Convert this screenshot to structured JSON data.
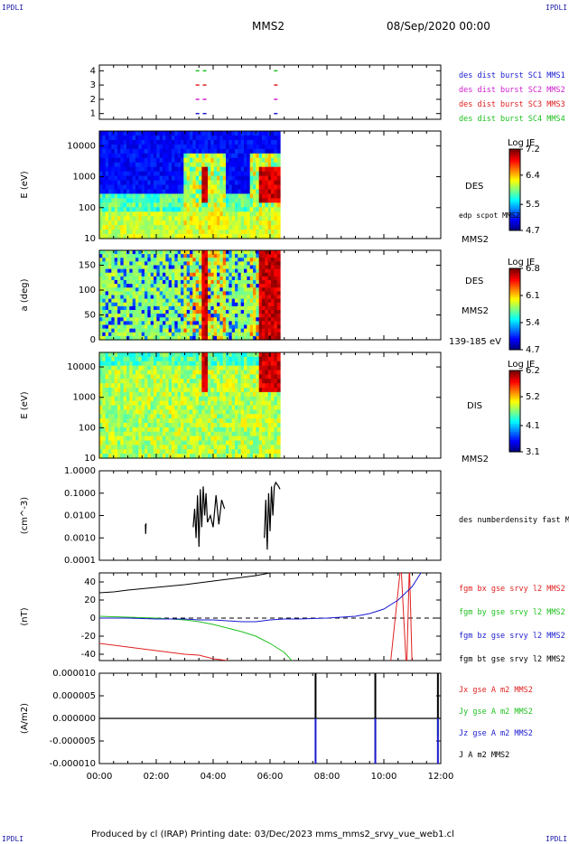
{
  "corner_label": "IPDLI",
  "header": {
    "spacecraft": "MMS2",
    "datetime": "08/Sep/2020 00:00"
  },
  "footer": {
    "text": "Produced by cl (IRAP)   Printing date: 03/Dec/2023   mms_mms2_srvy_vue_web1.cl"
  },
  "chart_data": [
    {
      "type": "scatter",
      "panel": "burst-availability",
      "yticks": [
        "1",
        "2",
        "3",
        "4"
      ],
      "ylim": [
        0.6,
        4.4
      ],
      "series": [
        {
          "name": "des dist burst SC1 MMS1",
          "color": "#1a1ad0",
          "y": 1,
          "x": [
            3.45,
            3.7,
            6.2
          ]
        },
        {
          "name": "des dist burst SC2 MMS2",
          "color": "#d020d0",
          "y": 2,
          "x": [
            3.45,
            3.7,
            6.2
          ]
        },
        {
          "name": "des dist burst SC3 MMS3",
          "color": "#e02020",
          "y": 3,
          "x": [
            3.45,
            3.7,
            6.2
          ]
        },
        {
          "name": "des dist burst SC4 MMS4",
          "color": "#20c020",
          "y": 4,
          "x": [
            3.45,
            3.7,
            6.2
          ]
        }
      ]
    },
    {
      "type": "heatmap",
      "panel": "des-energy",
      "ylabel": "E (eV)",
      "yscale": "log",
      "ylim": [
        10,
        30000
      ],
      "yticks": [
        "10",
        "100",
        "1000",
        "10000"
      ],
      "data_end_hour": 6.35,
      "right_labels": [
        "DES",
        "edp scpot MMS2",
        "MMS2"
      ],
      "colorbar": {
        "title": "Log JE",
        "ticks": [
          "4.7",
          "5.5",
          "6.4",
          "7.2"
        ],
        "range": [
          4.7,
          7.2
        ]
      }
    },
    {
      "type": "heatmap",
      "panel": "des-pitch-angle",
      "ylabel": "a (deg)",
      "ylim": [
        0,
        180
      ],
      "yticks": [
        "0",
        "50",
        "100",
        "150"
      ],
      "data_end_hour": 6.35,
      "right_labels": [
        "DES",
        "MMS2",
        "139-185 eV"
      ],
      "colorbar": {
        "title": "Log JE",
        "ticks": [
          "4.7",
          "5.4",
          "6.1",
          "6.8"
        ],
        "range": [
          4.7,
          6.8
        ]
      }
    },
    {
      "type": "heatmap",
      "panel": "dis-energy",
      "ylabel": "E (eV)",
      "yscale": "log",
      "ylim": [
        10,
        30000
      ],
      "yticks": [
        "10",
        "100",
        "1000",
        "10000"
      ],
      "data_end_hour": 6.35,
      "right_labels": [
        "DIS",
        "MMS2"
      ],
      "colorbar": {
        "title": "Log JE",
        "ticks": [
          "3.1",
          "4.1",
          "5.2",
          "6.2"
        ],
        "range": [
          3.1,
          6.2
        ]
      }
    },
    {
      "type": "line",
      "panel": "density",
      "ylabel": "(cm^-3)",
      "yscale": "log",
      "ylim": [
        0.0001,
        1.0
      ],
      "yticks": [
        "0.0001",
        "0.0010",
        "0.0100",
        "0.1000",
        "1.0000"
      ],
      "series": [
        {
          "name": "des numberdensity fast M",
          "color": "#000000",
          "points": [
            [
              1.62,
              0.004
            ],
            [
              1.63,
              0.0015
            ],
            [
              1.64,
              0.0045
            ],
            [
              3.3,
              0.003
            ],
            [
              3.35,
              0.02
            ],
            [
              3.4,
              0.001
            ],
            [
              3.45,
              0.08
            ],
            [
              3.5,
              0.0004
            ],
            [
              3.55,
              0.15
            ],
            [
              3.6,
              0.003
            ],
            [
              3.65,
              0.2
            ],
            [
              3.7,
              0.01
            ],
            [
              3.75,
              0.1
            ],
            [
              3.8,
              0.005
            ],
            [
              3.9,
              0.01
            ],
            [
              4.0,
              0.003
            ],
            [
              4.1,
              0.08
            ],
            [
              4.2,
              0.004
            ],
            [
              4.3,
              0.05
            ],
            [
              4.4,
              0.02
            ],
            [
              5.8,
              0.001
            ],
            [
              5.85,
              0.05
            ],
            [
              5.9,
              0.0003
            ],
            [
              5.95,
              0.1
            ],
            [
              6.0,
              0.002
            ],
            [
              6.05,
              0.2
            ],
            [
              6.1,
              0.01
            ],
            [
              6.15,
              0.2
            ],
            [
              6.2,
              0.3
            ],
            [
              6.3,
              0.2
            ],
            [
              6.35,
              0.15
            ]
          ]
        }
      ]
    },
    {
      "type": "line",
      "panel": "magnetic-field",
      "ylabel": "(nT)",
      "ylim": [
        -47,
        50
      ],
      "yticks": [
        "-40",
        "-20",
        "0",
        "20",
        "40"
      ],
      "series": [
        {
          "name": "fgm bx gse srvy l2 MMS2",
          "color": "#e02020",
          "points": [
            [
              0,
              -28
            ],
            [
              1,
              -32
            ],
            [
              2,
              -36
            ],
            [
              3,
              -40
            ],
            [
              3.5,
              -41
            ],
            [
              4,
              -45
            ],
            [
              4.5,
              -47
            ],
            [
              5,
              -50
            ],
            [
              10.2,
              -60
            ],
            [
              10.4,
              0
            ],
            [
              10.6,
              60
            ],
            [
              10.8,
              -60
            ],
            [
              10.9,
              60
            ],
            [
              11.0,
              -60
            ]
          ]
        },
        {
          "name": "fgm by gse srvy l2 MMS2",
          "color": "#20c020",
          "points": [
            [
              0,
              2
            ],
            [
              1,
              1
            ],
            [
              2,
              0
            ],
            [
              3,
              -2
            ],
            [
              3.5,
              -4
            ],
            [
              4,
              -7
            ],
            [
              4.5,
              -11
            ],
            [
              5,
              -15
            ],
            [
              5.5,
              -20
            ],
            [
              6,
              -28
            ],
            [
              6.5,
              -38
            ],
            [
              7,
              -55
            ]
          ]
        },
        {
          "name": "fgm bz gse srvy l2 MMS2",
          "color": "#1a1ad0",
          "points": [
            [
              0,
              0
            ],
            [
              1,
              0
            ],
            [
              2,
              -1
            ],
            [
              3,
              -1
            ],
            [
              3.5,
              -2
            ],
            [
              4,
              -2
            ],
            [
              4.5,
              -3
            ],
            [
              5,
              -4
            ],
            [
              5.5,
              -4
            ],
            [
              6,
              -2
            ],
            [
              6.5,
              -1
            ],
            [
              7,
              -1
            ],
            [
              8,
              0
            ],
            [
              9,
              2
            ],
            [
              9.5,
              5
            ],
            [
              10,
              10
            ],
            [
              10.5,
              20
            ],
            [
              11,
              35
            ],
            [
              11.5,
              60
            ]
          ]
        },
        {
          "name": "fgm bt gse srvy l2 MMS2",
          "color": "#000000",
          "points": [
            [
              0,
              28
            ],
            [
              0.5,
              29
            ],
            [
              1,
              31
            ],
            [
              2,
              34
            ],
            [
              3,
              37
            ],
            [
              3.5,
              39
            ],
            [
              4,
              41
            ],
            [
              4.5,
              43
            ],
            [
              5,
              45
            ],
            [
              5.5,
              47
            ],
            [
              6,
              50
            ],
            [
              6.5,
              55
            ]
          ]
        }
      ]
    },
    {
      "type": "line",
      "panel": "current-density",
      "ylabel": "(A/m2)",
      "ylim": [
        -1e-05,
        1e-05
      ],
      "yticks": [
        "-0.000010",
        "-0.000005",
        "0.000000",
        "0.000005",
        "0.000010"
      ],
      "xticks": [
        "00:00",
        "02:00",
        "04:00",
        "06:00",
        "08:00",
        "10:00",
        "12:00"
      ],
      "series": [
        {
          "name": "Jx gse A m2 MMS2",
          "color": "#e02020",
          "spikes": [
            [
              9.7,
              -9e-06
            ]
          ]
        },
        {
          "name": "Jy gse A m2 MMS2",
          "color": "#20c020",
          "spikes": [
            [
              9.7,
              -7e-06
            ],
            [
              11.9,
              -4e-06
            ]
          ]
        },
        {
          "name": "Jz gse A m2 MMS2",
          "color": "#1a1ad0",
          "spikes": [
            [
              7.6,
              -1e-05
            ],
            [
              9.7,
              -1e-05
            ],
            [
              11.9,
              -1e-05
            ]
          ]
        },
        {
          "name": "J A m2 MMS2",
          "color": "#000000",
          "spikes": [
            [
              7.6,
              1e-05
            ],
            [
              9.7,
              1e-05
            ],
            [
              11.9,
              1e-05
            ]
          ]
        }
      ]
    }
  ]
}
